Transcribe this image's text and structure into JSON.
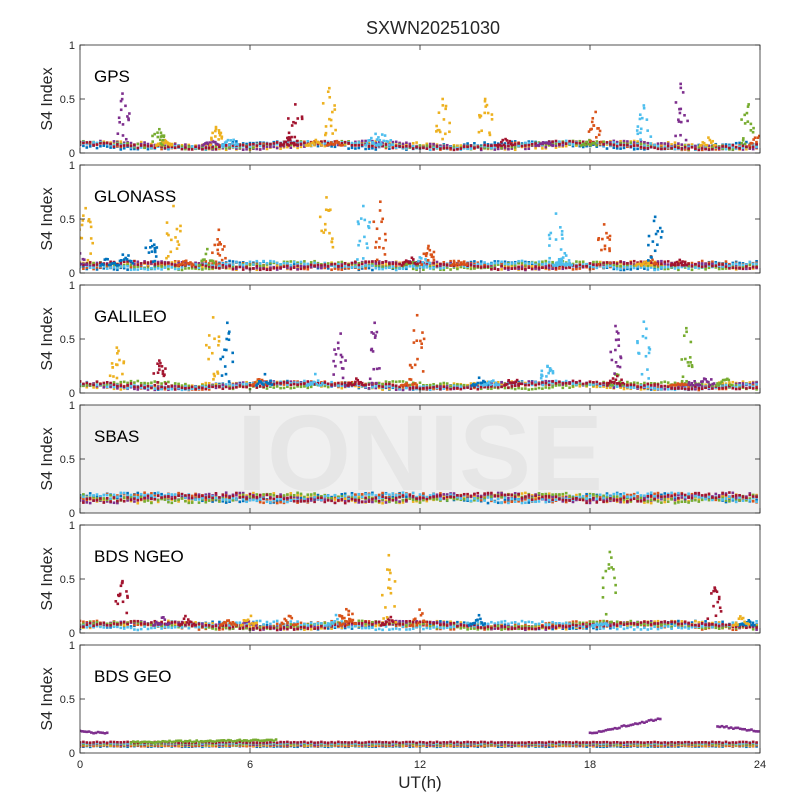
{
  "colors": {
    "series": [
      "#0072BD",
      "#D95319",
      "#EDB120",
      "#7E2F8E",
      "#77AC30",
      "#4DBEEE",
      "#A2142F"
    ],
    "axis": "#262626",
    "frame": "#262626",
    "watermark": "#e6e6e6",
    "panel_bg": "#ffffff",
    "highlight_bg": "#f0f0f0"
  },
  "chart_data": {
    "type": "scatter",
    "title": "SXWN20251030",
    "xlabel": "UT(h)",
    "ylabel": "S4 Index",
    "xlim": [
      0,
      24
    ],
    "ylim": [
      0,
      1
    ],
    "x_ticks": [
      "0",
      "6",
      "12",
      "18",
      "24"
    ],
    "y_ticks": [
      "0",
      "0.5",
      "1"
    ],
    "watermark": "IONISE",
    "grid": false,
    "panels": [
      {
        "label": "GPS",
        "baseline": 0.07,
        "spikes": [
          {
            "t": 1.5,
            "peak": 0.55,
            "color": 3
          },
          {
            "t": 2.8,
            "peak": 0.22,
            "color": 4
          },
          {
            "t": 4.8,
            "peak": 0.24,
            "color": 2
          },
          {
            "t": 7.6,
            "peak": 0.45,
            "color": 6
          },
          {
            "t": 8.8,
            "peak": 0.6,
            "color": 2
          },
          {
            "t": 12.8,
            "peak": 0.5,
            "color": 2
          },
          {
            "t": 14.3,
            "peak": 0.5,
            "color": 2
          },
          {
            "t": 18.2,
            "peak": 0.38,
            "color": 1
          },
          {
            "t": 19.9,
            "peak": 0.44,
            "color": 5
          },
          {
            "t": 21.2,
            "peak": 0.64,
            "color": 3
          },
          {
            "t": 23.6,
            "peak": 0.45,
            "color": 4
          }
        ]
      },
      {
        "label": "GLONASS",
        "baseline": 0.07,
        "spikes": [
          {
            "t": 0.2,
            "peak": 0.6,
            "color": 2
          },
          {
            "t": 2.5,
            "peak": 0.3,
            "color": 0
          },
          {
            "t": 3.3,
            "peak": 0.62,
            "color": 2
          },
          {
            "t": 4.9,
            "peak": 0.4,
            "color": 1
          },
          {
            "t": 8.7,
            "peak": 0.7,
            "color": 2
          },
          {
            "t": 10.0,
            "peak": 0.62,
            "color": 5
          },
          {
            "t": 10.6,
            "peak": 0.66,
            "color": 1
          },
          {
            "t": 12.3,
            "peak": 0.25,
            "color": 1
          },
          {
            "t": 16.8,
            "peak": 0.55,
            "color": 5
          },
          {
            "t": 18.5,
            "peak": 0.45,
            "color": 1
          },
          {
            "t": 20.3,
            "peak": 0.52,
            "color": 0
          }
        ]
      },
      {
        "label": "GALILEO",
        "baseline": 0.07,
        "spikes": [
          {
            "t": 1.3,
            "peak": 0.42,
            "color": 2
          },
          {
            "t": 2.8,
            "peak": 0.3,
            "color": 6
          },
          {
            "t": 4.7,
            "peak": 0.7,
            "color": 2
          },
          {
            "t": 5.2,
            "peak": 0.65,
            "color": 0
          },
          {
            "t": 9.2,
            "peak": 0.55,
            "color": 3
          },
          {
            "t": 10.4,
            "peak": 0.65,
            "color": 3
          },
          {
            "t": 11.9,
            "peak": 0.72,
            "color": 1
          },
          {
            "t": 16.5,
            "peak": 0.25,
            "color": 5
          },
          {
            "t": 18.9,
            "peak": 0.62,
            "color": 3
          },
          {
            "t": 19.9,
            "peak": 0.66,
            "color": 5
          },
          {
            "t": 21.4,
            "peak": 0.6,
            "color": 4
          }
        ]
      },
      {
        "label": "SBAS",
        "baseline": 0.14,
        "spikes": []
      },
      {
        "label": "BDS NGEO",
        "baseline": 0.07,
        "spikes": [
          {
            "t": 1.5,
            "peak": 0.48,
            "color": 6
          },
          {
            "t": 9.4,
            "peak": 0.22,
            "color": 1
          },
          {
            "t": 10.9,
            "peak": 0.72,
            "color": 2
          },
          {
            "t": 18.7,
            "peak": 0.75,
            "color": 4
          },
          {
            "t": 22.4,
            "peak": 0.42,
            "color": 6
          }
        ]
      },
      {
        "label": "BDS GEO",
        "baseline": 0.08,
        "spikes": [],
        "tracks": [
          {
            "t0": 0.0,
            "t1": 1.0,
            "v0": 0.2,
            "v1": 0.18,
            "color": 3
          },
          {
            "t0": 1.8,
            "t1": 7.0,
            "v0": 0.1,
            "v1": 0.12,
            "color": 4
          },
          {
            "t0": 18.0,
            "t1": 20.5,
            "v0": 0.18,
            "v1": 0.32,
            "color": 3
          },
          {
            "t0": 22.5,
            "t1": 24.0,
            "v0": 0.25,
            "v1": 0.2,
            "color": 3
          }
        ]
      }
    ]
  }
}
